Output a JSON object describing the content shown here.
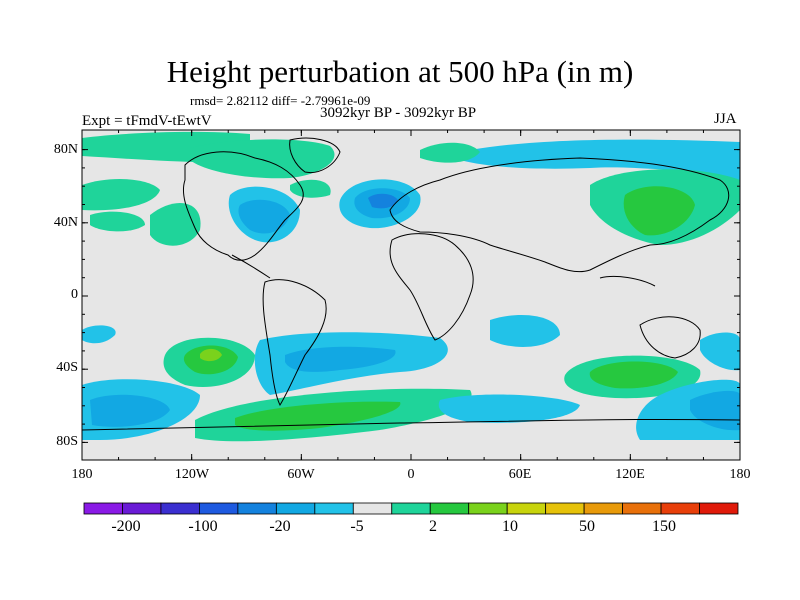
{
  "title": "Height perturbation at 500 hPa (in m)",
  "stats": "rmsd= 2.82112 diff= -2.79961e-09",
  "period": "3092kyr BP - 3092kyr BP",
  "experiment": "Expt = tFmdV-tEwtV",
  "season": "JJA",
  "y_axis_labels": [
    "80N",
    "40N",
    "0",
    "40S",
    "80S"
  ],
  "x_axis_labels": [
    "180",
    "120W",
    "60W",
    "0",
    "60E",
    "120E",
    "180"
  ],
  "colorbar": {
    "labels": [
      "-200",
      "-100",
      "-20",
      "-5",
      "2",
      "10",
      "50",
      "150"
    ],
    "colors": [
      "#8a1ae6",
      "#6a1bd6",
      "#3b2fd0",
      "#1e5ae0",
      "#1482de",
      "#12a8e3",
      "#22c2e8",
      "#e6e6e6",
      "#1fd49a",
      "#26c83f",
      "#7ad21c",
      "#c8d40d",
      "#e6c20a",
      "#e89a0a",
      "#e8700a",
      "#e83f0a",
      "#e01a0a"
    ]
  },
  "map_colors": {
    "background": "#e6e6e6",
    "light_blue": "#22c2e8",
    "mid_blue": "#12a8e3",
    "dark_blue": "#1482de",
    "green": "#1fd49a",
    "mid_green": "#26c83f",
    "yellow_green": "#7ad21c"
  }
}
